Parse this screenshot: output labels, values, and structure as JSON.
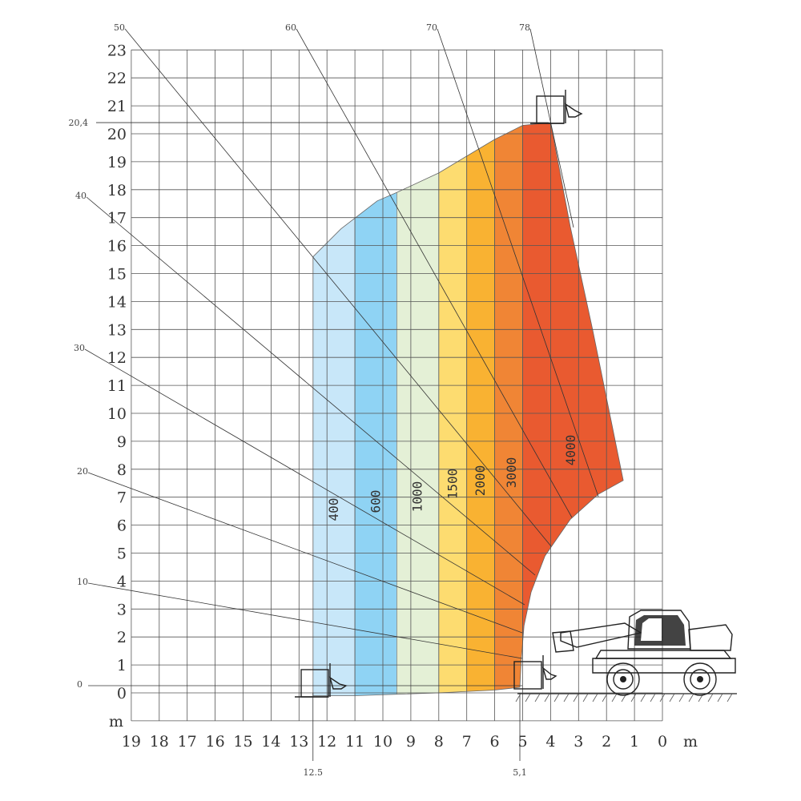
{
  "chart_data": {
    "type": "area",
    "title": "",
    "xlabel": "m",
    "ylabel": "m",
    "x_axis": {
      "min": 0,
      "max": 19,
      "reversed": true,
      "ticks": [
        "19",
        "18",
        "17",
        "16",
        "15",
        "14",
        "13",
        "12",
        "11",
        "10",
        "9",
        "8",
        "7",
        "6",
        "5",
        "4",
        "3",
        "2",
        "1",
        "0"
      ],
      "unit": "m"
    },
    "y_axis": {
      "min": -1,
      "max": 23,
      "ticks": [
        "0",
        "1",
        "2",
        "3",
        "4",
        "5",
        "6",
        "7",
        "8",
        "9",
        "10",
        "11",
        "12",
        "13",
        "14",
        "15",
        "16",
        "17",
        "18",
        "19",
        "20",
        "21",
        "22",
        "23"
      ],
      "unit": "m"
    },
    "grid": true,
    "load_zones": [
      {
        "label": "400",
        "x_range": [
          11.0,
          12.5
        ],
        "color": "#c8e7f9"
      },
      {
        "label": "600",
        "x_range": [
          9.5,
          11.0
        ],
        "color": "#8fd3f4"
      },
      {
        "label": "1000",
        "x_range": [
          8.0,
          9.5
        ],
        "color": "#e4f0d6"
      },
      {
        "label": "1500",
        "x_range": [
          7.0,
          8.0
        ],
        "color": "#fddc70"
      },
      {
        "label": "2000",
        "x_range": [
          6.0,
          7.0
        ],
        "color": "#f9b232"
      },
      {
        "label": "3000",
        "x_range": [
          5.0,
          6.0
        ],
        "color": "#f08535"
      },
      {
        "label": "4000",
        "x_range": [
          1.4,
          5.0
        ],
        "color": "#e95a30"
      }
    ],
    "envelope": [
      [
        12.5,
        -0.1
      ],
      [
        12.5,
        15.6
      ],
      [
        11.5,
        16.6
      ],
      [
        10.2,
        17.6
      ],
      [
        9.5,
        17.9
      ],
      [
        8.0,
        18.6
      ],
      [
        7.0,
        19.2
      ],
      [
        6.0,
        19.8
      ],
      [
        5.0,
        20.3
      ],
      [
        4.0,
        20.4
      ],
      [
        3.3,
        16.7
      ],
      [
        2.5,
        13.0
      ],
      [
        1.4,
        7.6
      ],
      [
        2.3,
        7.1
      ],
      [
        3.3,
        6.2
      ],
      [
        4.2,
        4.9
      ],
      [
        4.7,
        3.6
      ],
      [
        4.95,
        2.4
      ],
      [
        5.05,
        1.2
      ],
      [
        5.1,
        0.2
      ],
      [
        6.0,
        0.1
      ],
      [
        8.0,
        -0.0
      ],
      [
        9.5,
        -0.05
      ],
      [
        11.0,
        -0.1
      ]
    ],
    "boom_angles": [
      {
        "label": "0"
      },
      {
        "label": "10"
      },
      {
        "label": "20"
      },
      {
        "label": "30"
      },
      {
        "label": "40"
      },
      {
        "label": "50"
      },
      {
        "label": "60"
      },
      {
        "label": "70"
      },
      {
        "label": "78"
      }
    ],
    "annotations": [
      {
        "text": "20,4",
        "axis": "y",
        "value": 20.4
      },
      {
        "text": "12.5",
        "axis": "x",
        "value": 12.5
      },
      {
        "text": "5,1",
        "axis": "x",
        "value": 5.1
      }
    ]
  }
}
